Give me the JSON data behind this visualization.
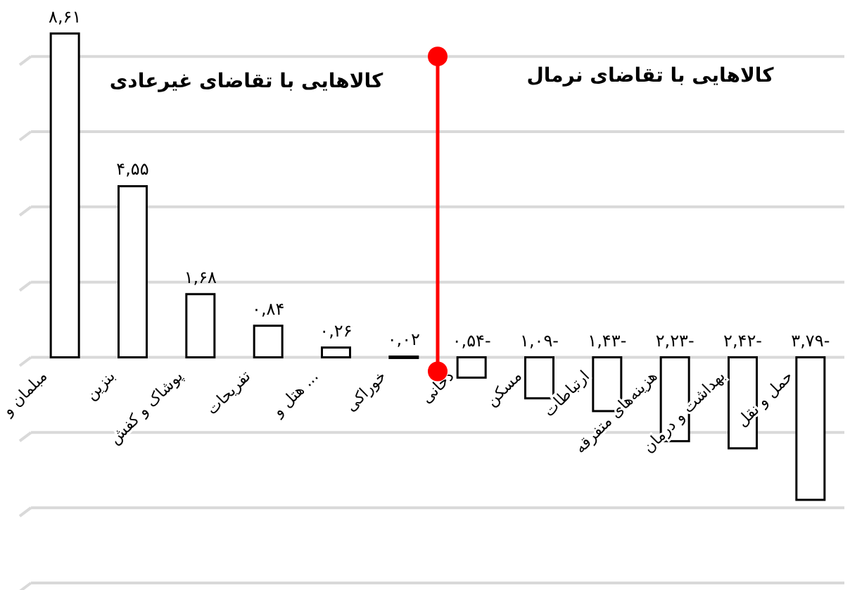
{
  "chart_data": {
    "type": "bar",
    "categories": [
      "مبلمان و",
      "بنزین",
      "پوشاک و کفش",
      "تفریحات",
      "هتل و ...",
      "خوراکی",
      "دخانی",
      "مسکن",
      "ارتباطات",
      "هزینه‌های متفرقه",
      "بهداشت و درمان",
      "حمل و نقل"
    ],
    "values": [
      8.61,
      4.55,
      1.68,
      0.84,
      0.26,
      0.02,
      -0.54,
      -1.09,
      -1.43,
      -2.23,
      -2.42,
      -3.79
    ],
    "value_labels": [
      "۸,۶۱",
      "۴,۵۵",
      "۱,۶۸",
      "۰,۸۴",
      "۰,۲۶",
      "۰,۰۲",
      "-۰,۵۴",
      "-۱,۰۹",
      "-۱,۴۳",
      "-۲,۲۳",
      "-۲,۴۲",
      "-۳,۷۹"
    ],
    "color": "#ffffff",
    "yticks": [
      {
        "value": -6,
        "label": null
      },
      {
        "value": -4,
        "label": null
      },
      {
        "value": -2,
        "label": null
      },
      {
        "value": 0,
        "label": null
      },
      {
        "value": 2,
        "label": null
      },
      {
        "value": 4,
        "label": null
      },
      {
        "value": 6,
        "label": null
      },
      {
        "value": 8,
        "label": null
      }
    ],
    "tick_labels": "x",
    "grid": "y",
    "annotations": [
      "کالاهایی با تقاضای غیرعادی",
      "کالاهایی با تقاضای نرمال"
    ]
  }
}
